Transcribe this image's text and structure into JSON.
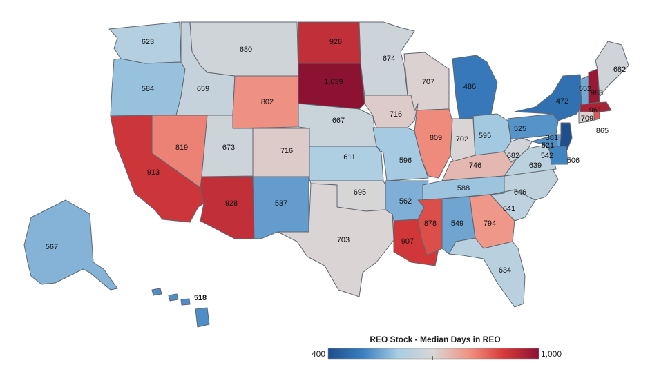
{
  "legend": {
    "title": "REO Stock - Median Days in REO",
    "min_label": "400",
    "max_label": "1,000",
    "min": 400,
    "max": 1000,
    "colors": [
      "#1f4e8c",
      "#3a7fc0",
      "#a9cde3",
      "#d9d6d6",
      "#f09383",
      "#d63a3a",
      "#8c1232"
    ]
  },
  "states": [
    {
      "id": "WA",
      "label": "623",
      "value": 623
    },
    {
      "id": "OR",
      "label": "584",
      "value": 584
    },
    {
      "id": "CA",
      "label": "913",
      "value": 913
    },
    {
      "id": "NV",
      "label": "819",
      "value": 819
    },
    {
      "id": "ID",
      "label": "659",
      "value": 659
    },
    {
      "id": "MT",
      "label": "680",
      "value": 680
    },
    {
      "id": "WY",
      "label": "802",
      "value": 802
    },
    {
      "id": "UT",
      "label": "673",
      "value": 673
    },
    {
      "id": "AZ",
      "label": "928",
      "value": 928
    },
    {
      "id": "CO",
      "label": "716",
      "value": 716
    },
    {
      "id": "NM",
      "label": "537",
      "value": 537
    },
    {
      "id": "ND",
      "label": "928",
      "value": 928
    },
    {
      "id": "SD",
      "label": "1,039",
      "value": 1039
    },
    {
      "id": "NE",
      "label": "667",
      "value": 667
    },
    {
      "id": "KS",
      "label": "611",
      "value": 611
    },
    {
      "id": "OK",
      "label": "695",
      "value": 695
    },
    {
      "id": "TX",
      "label": "703",
      "value": 703
    },
    {
      "id": "MN",
      "label": "674",
      "value": 674
    },
    {
      "id": "IA",
      "label": "716",
      "value": 716
    },
    {
      "id": "MO",
      "label": "596",
      "value": 596
    },
    {
      "id": "AR",
      "label": "562",
      "value": 562
    },
    {
      "id": "LA",
      "label": "907",
      "value": 907
    },
    {
      "id": "WI",
      "label": "707",
      "value": 707
    },
    {
      "id": "IL",
      "label": "809",
      "value": 809
    },
    {
      "id": "MI",
      "label": "486",
      "value": 486
    },
    {
      "id": "IN",
      "label": "702",
      "value": 702
    },
    {
      "id": "OH",
      "label": "595",
      "value": 595
    },
    {
      "id": "KY",
      "label": "746",
      "value": 746
    },
    {
      "id": "TN",
      "label": "588",
      "value": 588
    },
    {
      "id": "MS",
      "label": "878",
      "value": 878
    },
    {
      "id": "AL",
      "label": "549",
      "value": 549
    },
    {
      "id": "GA",
      "label": "794",
      "value": 794
    },
    {
      "id": "FL",
      "label": "634",
      "value": 634
    },
    {
      "id": "SC",
      "label": "641",
      "value": 641
    },
    {
      "id": "NC",
      "label": "646",
      "value": 646
    },
    {
      "id": "VA",
      "label": "639",
      "value": 639
    },
    {
      "id": "WV",
      "label": "682",
      "value": 682
    },
    {
      "id": "PA",
      "label": "525",
      "value": 525
    },
    {
      "id": "NY",
      "label": "472",
      "value": 472
    },
    {
      "id": "MD",
      "label": "521",
      "value": 521
    },
    {
      "id": "DE",
      "label": "542",
      "value": 542
    },
    {
      "id": "NJ",
      "label": "381",
      "value": 381
    },
    {
      "id": "DC",
      "label": "506",
      "value": 506
    },
    {
      "id": "CT",
      "label": "709",
      "value": 709
    },
    {
      "id": "RI",
      "label": "865",
      "value": 865
    },
    {
      "id": "MA",
      "label": "961",
      "value": 961
    },
    {
      "id": "VT",
      "label": "552",
      "value": 552
    },
    {
      "id": "NH",
      "label": "983",
      "value": 983
    },
    {
      "id": "ME",
      "label": "682",
      "value": 682
    },
    {
      "id": "AK",
      "label": "567",
      "value": 567
    },
    {
      "id": "HI",
      "label": "518",
      "value": 518
    }
  ]
}
